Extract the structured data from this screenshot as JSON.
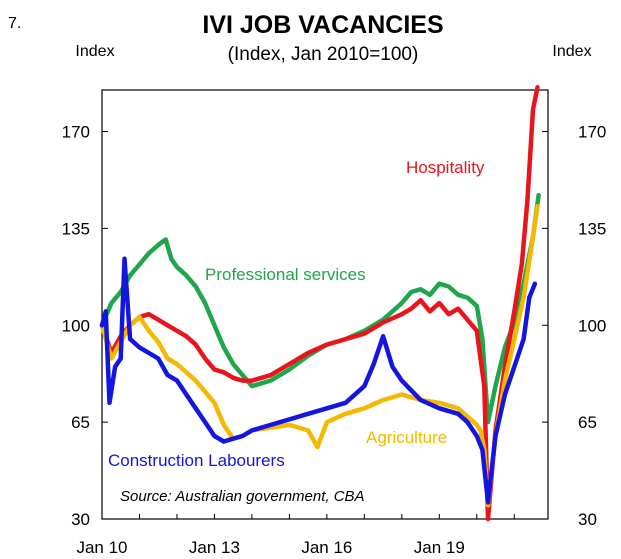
{
  "figure_number": "7.",
  "chart_data": {
    "type": "line",
    "title": "IVI JOB VACANCIES",
    "subtitle": "(Index, Jan 2010=100)",
    "ylabel_left": "Index",
    "ylabel_right": "Index",
    "source": "Source: Australian government, CBA",
    "x_range": [
      2010.0,
      2021.9
    ],
    "ylim": [
      30,
      185
    ],
    "y_ticks": [
      30,
      65,
      100,
      135,
      170
    ],
    "x_ticks": [
      {
        "label": "Jan 10",
        "value": 2010.0
      },
      {
        "label": "Jan 13",
        "value": 2013.0
      },
      {
        "label": "Jan 16",
        "value": 2016.0
      },
      {
        "label": "Jan 19",
        "value": 2019.0
      }
    ],
    "grid": false,
    "legend": "direct labels",
    "series": [
      {
        "name": "Professional services",
        "color": "#1fa64a",
        "x": [
          2010.0,
          2010.25,
          2010.5,
          2010.75,
          2011.0,
          2011.25,
          2011.5,
          2011.7,
          2011.85,
          2012.0,
          2012.25,
          2012.5,
          2012.75,
          2013.0,
          2013.25,
          2013.5,
          2013.75,
          2014.0,
          2014.5,
          2015.0,
          2015.5,
          2016.0,
          2016.5,
          2017.0,
          2017.5,
          2018.0,
          2018.25,
          2018.5,
          2018.75,
          2019.0,
          2019.25,
          2019.5,
          2019.75,
          2020.0,
          2020.15,
          2020.3,
          2020.5,
          2020.75,
          2021.0,
          2021.25,
          2021.5,
          2021.65
        ],
        "values": [
          100,
          108,
          112,
          118,
          122,
          126,
          129,
          131,
          124,
          121,
          118,
          114,
          108,
          100,
          92,
          86,
          82,
          78,
          80,
          84,
          89,
          93,
          95,
          98,
          102,
          108,
          112,
          113,
          111,
          115,
          114,
          111,
          110,
          107,
          95,
          65,
          78,
          92,
          101,
          115,
          132,
          147
        ]
      },
      {
        "name": "Hospitality",
        "color": "#e8151c",
        "x": [
          2010.0,
          2010.25,
          2010.5,
          2010.75,
          2011.0,
          2011.25,
          2011.5,
          2011.75,
          2012.0,
          2012.25,
          2012.5,
          2012.75,
          2013.0,
          2013.25,
          2013.5,
          2013.75,
          2014.0,
          2014.5,
          2015.0,
          2015.5,
          2016.0,
          2016.5,
          2017.0,
          2017.5,
          2018.0,
          2018.25,
          2018.5,
          2018.75,
          2019.0,
          2019.25,
          2019.5,
          2019.75,
          2020.0,
          2020.1,
          2020.2,
          2020.3,
          2020.5,
          2020.75,
          2021.0,
          2021.2,
          2021.35,
          2021.5,
          2021.62
        ],
        "values": [
          100,
          90,
          96,
          100,
          103,
          104,
          102,
          100,
          98,
          96,
          93,
          88,
          84,
          83,
          81,
          80,
          80,
          82,
          86,
          90,
          93,
          95,
          97,
          101,
          104,
          106,
          109,
          105,
          108,
          104,
          106,
          102,
          98,
          88,
          78,
          30,
          62,
          85,
          105,
          122,
          145,
          178,
          186
        ]
      },
      {
        "name": "Agriculture",
        "color": "#f5b800",
        "x": [
          2010.0,
          2010.25,
          2010.5,
          2010.75,
          2011.0,
          2011.25,
          2011.5,
          2011.75,
          2012.0,
          2012.5,
          2013.0,
          2013.25,
          2013.5,
          2013.75,
          2014.0,
          2014.5,
          2015.0,
          2015.5,
          2015.75,
          2016.0,
          2016.5,
          2017.0,
          2017.5,
          2018.0,
          2018.5,
          2019.0,
          2019.5,
          2019.75,
          2020.0,
          2020.1,
          2020.2,
          2020.3,
          2020.5,
          2020.75,
          2021.0,
          2021.25,
          2021.5,
          2021.62
        ],
        "values": [
          100,
          88,
          94,
          100,
          103,
          98,
          94,
          88,
          86,
          80,
          72,
          64,
          59,
          60,
          62,
          63,
          64,
          62,
          56,
          65,
          68,
          70,
          73,
          75,
          73,
          72,
          70,
          67,
          64,
          62,
          55,
          35,
          60,
          80,
          95,
          110,
          132,
          143
        ]
      },
      {
        "name": "Construction Labourers",
        "color": "#1515e0",
        "x": [
          2010.0,
          2010.1,
          2010.2,
          2010.35,
          2010.5,
          2010.6,
          2010.75,
          2011.0,
          2011.25,
          2011.5,
          2011.75,
          2012.0,
          2012.25,
          2012.5,
          2012.75,
          2013.0,
          2013.25,
          2013.5,
          2013.75,
          2014.0,
          2014.5,
          2015.0,
          2015.5,
          2016.0,
          2016.5,
          2017.0,
          2017.25,
          2017.5,
          2017.75,
          2018.0,
          2018.5,
          2019.0,
          2019.5,
          2019.75,
          2020.0,
          2020.15,
          2020.3,
          2020.5,
          2020.75,
          2021.0,
          2021.25,
          2021.4,
          2021.55
        ],
        "values": [
          100,
          105,
          72,
          85,
          88,
          124,
          95,
          92,
          90,
          88,
          82,
          80,
          75,
          70,
          65,
          60,
          58,
          59,
          60,
          62,
          64,
          66,
          68,
          70,
          72,
          78,
          86,
          96,
          85,
          80,
          73,
          70,
          68,
          65,
          60,
          55,
          36,
          60,
          75,
          85,
          95,
          110,
          115
        ]
      }
    ],
    "annotations": [
      {
        "text": "Hospitality",
        "color": "#e8151c"
      },
      {
        "text": "Professional services",
        "color": "#1fa64a"
      },
      {
        "text": "Agriculture",
        "color": "#f5b800"
      },
      {
        "text": "Construction Labourers",
        "color": "#1515e0"
      }
    ]
  }
}
